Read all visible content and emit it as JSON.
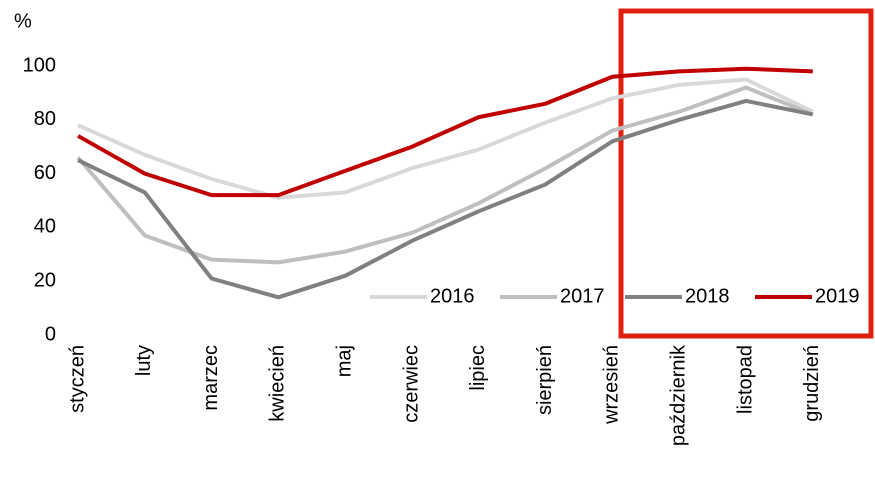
{
  "chart_data": {
    "type": "line",
    "y_label": "%",
    "categories": [
      "styczeń",
      "luty",
      "marzec",
      "kwiecień",
      "maj",
      "czerwiec",
      "lipiec",
      "sierpień",
      "wrzesień",
      "październik",
      "listopad",
      "grudzień"
    ],
    "series": [
      {
        "name": "2016",
        "color": "#d9d9d9",
        "values": [
          78,
          67,
          58,
          51,
          53,
          62,
          69,
          79,
          88,
          93,
          95,
          83
        ]
      },
      {
        "name": "2017",
        "color": "#bfbfbf",
        "values": [
          66,
          37,
          28,
          27,
          31,
          38,
          49,
          62,
          76,
          83,
          92,
          82
        ]
      },
      {
        "name": "2018",
        "color": "#808080",
        "values": [
          65,
          53,
          21,
          14,
          22,
          35,
          46,
          56,
          72,
          80,
          87,
          82
        ]
      },
      {
        "name": "2019",
        "color": "#c00000",
        "values": [
          74,
          60,
          52,
          52,
          61,
          70,
          81,
          86,
          96,
          98,
          99,
          98
        ]
      }
    ],
    "ylim": [
      0,
      100
    ],
    "yticks": [
      0,
      20,
      40,
      60,
      80,
      100
    ],
    "grid": false,
    "legend": "bottom-right"
  }
}
